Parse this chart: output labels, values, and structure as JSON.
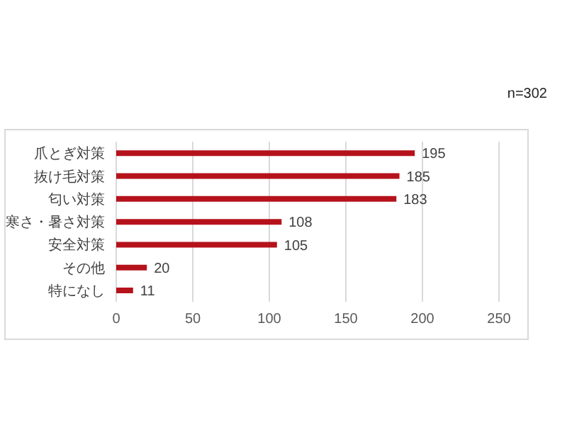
{
  "chart_data": {
    "type": "bar",
    "orientation": "horizontal",
    "categories": [
      "爪とぎ対策",
      "抜け毛対策",
      "匂い対策",
      "寒さ・暑さ対策",
      "安全対策",
      "その他",
      "特になし"
    ],
    "values": [
      195,
      185,
      183,
      108,
      105,
      20,
      11
    ],
    "color": "#b5121b",
    "xlim": [
      0,
      250
    ],
    "xticks": [
      0,
      50,
      100,
      150,
      200,
      250
    ],
    "grid": "x",
    "data_labels": true,
    "annotations": [
      "n=302"
    ]
  }
}
